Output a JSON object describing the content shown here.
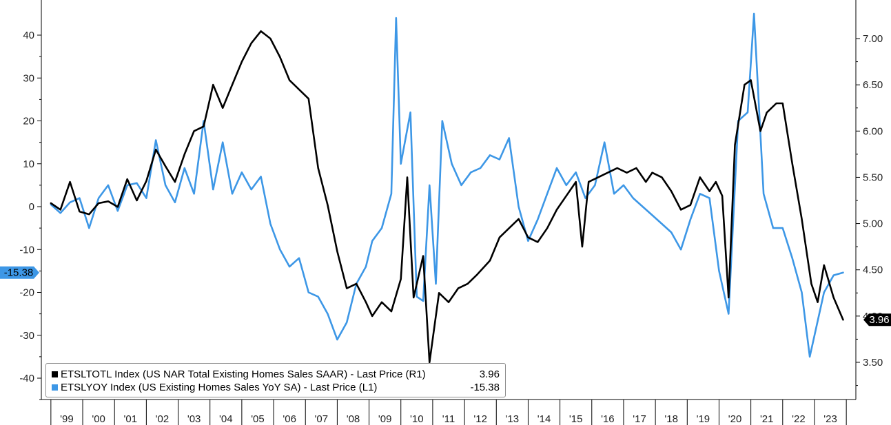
{
  "chart_data": {
    "type": "line",
    "x_axis": {
      "labels": [
        "'99",
        "'00",
        "'01",
        "'02",
        "'03",
        "'04",
        "'05",
        "'06",
        "'07",
        "'08",
        "'09",
        "'10",
        "'11",
        "'12",
        "'13",
        "'14",
        "'15",
        "'16",
        "'17",
        "'18",
        "'19",
        "'20",
        "'21",
        "'22",
        "'23"
      ]
    },
    "y_left": {
      "ticks": [
        40,
        30,
        20,
        10,
        0,
        -10,
        -20,
        -30,
        -40
      ],
      "ylim": [
        -45,
        48
      ]
    },
    "y_right": {
      "ticks": [
        "7.00",
        "6.50",
        "6.00",
        "5.50",
        "5.00",
        "4.50",
        "4.00",
        "3.50"
      ],
      "ylim": [
        3.2,
        7.4
      ]
    },
    "grid": false,
    "legend_position": "bottom-left",
    "series": [
      {
        "name": "ETSLTOTL Index (US NAR Total Existing Homes Sales SAAR) - Last Price (R1)",
        "axis": "right",
        "color": "#000000",
        "last_value": "3.96",
        "values": [
          [
            1999.0,
            5.22
          ],
          [
            1999.3,
            5.15
          ],
          [
            1999.6,
            5.45
          ],
          [
            1999.9,
            5.13
          ],
          [
            2000.2,
            5.1
          ],
          [
            2000.5,
            5.22
          ],
          [
            2000.8,
            5.24
          ],
          [
            2001.1,
            5.18
          ],
          [
            2001.4,
            5.48
          ],
          [
            2001.7,
            5.25
          ],
          [
            2002.0,
            5.46
          ],
          [
            2002.3,
            5.8
          ],
          [
            2002.6,
            5.62
          ],
          [
            2002.9,
            5.45
          ],
          [
            2003.2,
            5.75
          ],
          [
            2003.5,
            6.0
          ],
          [
            2003.8,
            6.05
          ],
          [
            2004.1,
            6.5
          ],
          [
            2004.4,
            6.25
          ],
          [
            2004.7,
            6.5
          ],
          [
            2005.0,
            6.75
          ],
          [
            2005.3,
            6.95
          ],
          [
            2005.6,
            7.08
          ],
          [
            2005.9,
            7.0
          ],
          [
            2006.2,
            6.8
          ],
          [
            2006.5,
            6.55
          ],
          [
            2006.8,
            6.45
          ],
          [
            2007.1,
            6.35
          ],
          [
            2007.4,
            5.6
          ],
          [
            2007.7,
            5.2
          ],
          [
            2008.0,
            4.7
          ],
          [
            2008.3,
            4.3
          ],
          [
            2008.6,
            4.35
          ],
          [
            2008.9,
            4.15
          ],
          [
            2009.1,
            4.0
          ],
          [
            2009.4,
            4.15
          ],
          [
            2009.7,
            4.05
          ],
          [
            2010.0,
            4.4
          ],
          [
            2010.2,
            5.5
          ],
          [
            2010.4,
            4.2
          ],
          [
            2010.7,
            4.65
          ],
          [
            2010.9,
            3.5
          ],
          [
            2011.2,
            4.25
          ],
          [
            2011.5,
            4.15
          ],
          [
            2011.8,
            4.3
          ],
          [
            2012.1,
            4.35
          ],
          [
            2012.4,
            4.45
          ],
          [
            2012.8,
            4.6
          ],
          [
            2013.1,
            4.85
          ],
          [
            2013.4,
            4.95
          ],
          [
            2013.7,
            5.05
          ],
          [
            2014.0,
            4.85
          ],
          [
            2014.3,
            4.8
          ],
          [
            2014.6,
            4.95
          ],
          [
            2014.9,
            5.15
          ],
          [
            2015.2,
            5.3
          ],
          [
            2015.5,
            5.45
          ],
          [
            2015.7,
            4.75
          ],
          [
            2015.9,
            5.45
          ],
          [
            2016.2,
            5.5
          ],
          [
            2016.5,
            5.55
          ],
          [
            2016.8,
            5.6
          ],
          [
            2017.1,
            5.55
          ],
          [
            2017.4,
            5.6
          ],
          [
            2017.7,
            5.45
          ],
          [
            2017.9,
            5.55
          ],
          [
            2018.2,
            5.5
          ],
          [
            2018.5,
            5.35
          ],
          [
            2018.8,
            5.15
          ],
          [
            2019.1,
            5.2
          ],
          [
            2019.4,
            5.5
          ],
          [
            2019.7,
            5.35
          ],
          [
            2019.9,
            5.45
          ],
          [
            2020.1,
            5.3
          ],
          [
            2020.3,
            4.2
          ],
          [
            2020.5,
            5.85
          ],
          [
            2020.8,
            6.5
          ],
          [
            2021.0,
            6.55
          ],
          [
            2021.3,
            6.0
          ],
          [
            2021.5,
            6.2
          ],
          [
            2021.8,
            6.3
          ],
          [
            2022.0,
            6.3
          ],
          [
            2022.3,
            5.65
          ],
          [
            2022.6,
            5.05
          ],
          [
            2022.9,
            4.35
          ],
          [
            2023.1,
            4.15
          ],
          [
            2023.3,
            4.55
          ],
          [
            2023.6,
            4.2
          ],
          [
            2023.9,
            3.96
          ]
        ]
      },
      {
        "name": "ETSLYOY Index (US Existing Homes Sales YoY SA) - Last Price (L1)",
        "axis": "left",
        "color": "#3d97e6",
        "last_value": "-15.38",
        "values": [
          [
            1999.0,
            0.5
          ],
          [
            1999.3,
            -1.5
          ],
          [
            1999.6,
            1.0
          ],
          [
            1999.9,
            2.0
          ],
          [
            2000.2,
            -5.0
          ],
          [
            2000.5,
            2.0
          ],
          [
            2000.8,
            5.0
          ],
          [
            2001.1,
            -1.0
          ],
          [
            2001.4,
            5.0
          ],
          [
            2001.7,
            5.5
          ],
          [
            2002.0,
            2.0
          ],
          [
            2002.3,
            15.5
          ],
          [
            2002.6,
            5.0
          ],
          [
            2002.9,
            1.0
          ],
          [
            2003.2,
            9.0
          ],
          [
            2003.5,
            3.0
          ],
          [
            2003.8,
            20.0
          ],
          [
            2004.1,
            4.0
          ],
          [
            2004.4,
            15.0
          ],
          [
            2004.7,
            3.0
          ],
          [
            2005.0,
            8.0
          ],
          [
            2005.3,
            4.0
          ],
          [
            2005.6,
            7.0
          ],
          [
            2005.9,
            -4.0
          ],
          [
            2006.2,
            -10.0
          ],
          [
            2006.5,
            -14.0
          ],
          [
            2006.8,
            -12.0
          ],
          [
            2007.1,
            -20.0
          ],
          [
            2007.4,
            -21.0
          ],
          [
            2007.7,
            -25.0
          ],
          [
            2008.0,
            -31.0
          ],
          [
            2008.3,
            -27.0
          ],
          [
            2008.6,
            -18.0
          ],
          [
            2008.9,
            -14.0
          ],
          [
            2009.1,
            -8.0
          ],
          [
            2009.4,
            -5.0
          ],
          [
            2009.7,
            3.0
          ],
          [
            2009.85,
            44.0
          ],
          [
            2010.0,
            10.0
          ],
          [
            2010.3,
            22.0
          ],
          [
            2010.5,
            -21.0
          ],
          [
            2010.7,
            -22.0
          ],
          [
            2010.9,
            5.0
          ],
          [
            2011.1,
            -18.0
          ],
          [
            2011.3,
            20.0
          ],
          [
            2011.6,
            10.0
          ],
          [
            2011.9,
            5.0
          ],
          [
            2012.2,
            8.0
          ],
          [
            2012.5,
            9.0
          ],
          [
            2012.8,
            12.0
          ],
          [
            2013.1,
            11.0
          ],
          [
            2013.4,
            16.0
          ],
          [
            2013.7,
            0.0
          ],
          [
            2014.0,
            -8.0
          ],
          [
            2014.3,
            -3.0
          ],
          [
            2014.6,
            3.0
          ],
          [
            2014.9,
            9.0
          ],
          [
            2015.2,
            5.0
          ],
          [
            2015.5,
            8.0
          ],
          [
            2015.8,
            2.0
          ],
          [
            2016.1,
            5.0
          ],
          [
            2016.4,
            15.0
          ],
          [
            2016.7,
            3.0
          ],
          [
            2017.0,
            5.0
          ],
          [
            2017.3,
            2.0
          ],
          [
            2017.6,
            0.0
          ],
          [
            2017.9,
            -2.0
          ],
          [
            2018.2,
            -4.0
          ],
          [
            2018.5,
            -6.0
          ],
          [
            2018.8,
            -10.0
          ],
          [
            2019.1,
            -3.0
          ],
          [
            2019.4,
            3.0
          ],
          [
            2019.7,
            2.0
          ],
          [
            2020.0,
            -15.0
          ],
          [
            2020.3,
            -25.0
          ],
          [
            2020.6,
            20.0
          ],
          [
            2020.9,
            22.0
          ],
          [
            2021.1,
            45.0
          ],
          [
            2021.4,
            3.0
          ],
          [
            2021.7,
            -5.0
          ],
          [
            2022.0,
            -5.0
          ],
          [
            2022.3,
            -12.0
          ],
          [
            2022.6,
            -20.0
          ],
          [
            2022.85,
            -35.0
          ],
          [
            2023.0,
            -30.0
          ],
          [
            2023.3,
            -20.0
          ],
          [
            2023.6,
            -16.0
          ],
          [
            2023.9,
            -15.38
          ]
        ]
      }
    ]
  }
}
